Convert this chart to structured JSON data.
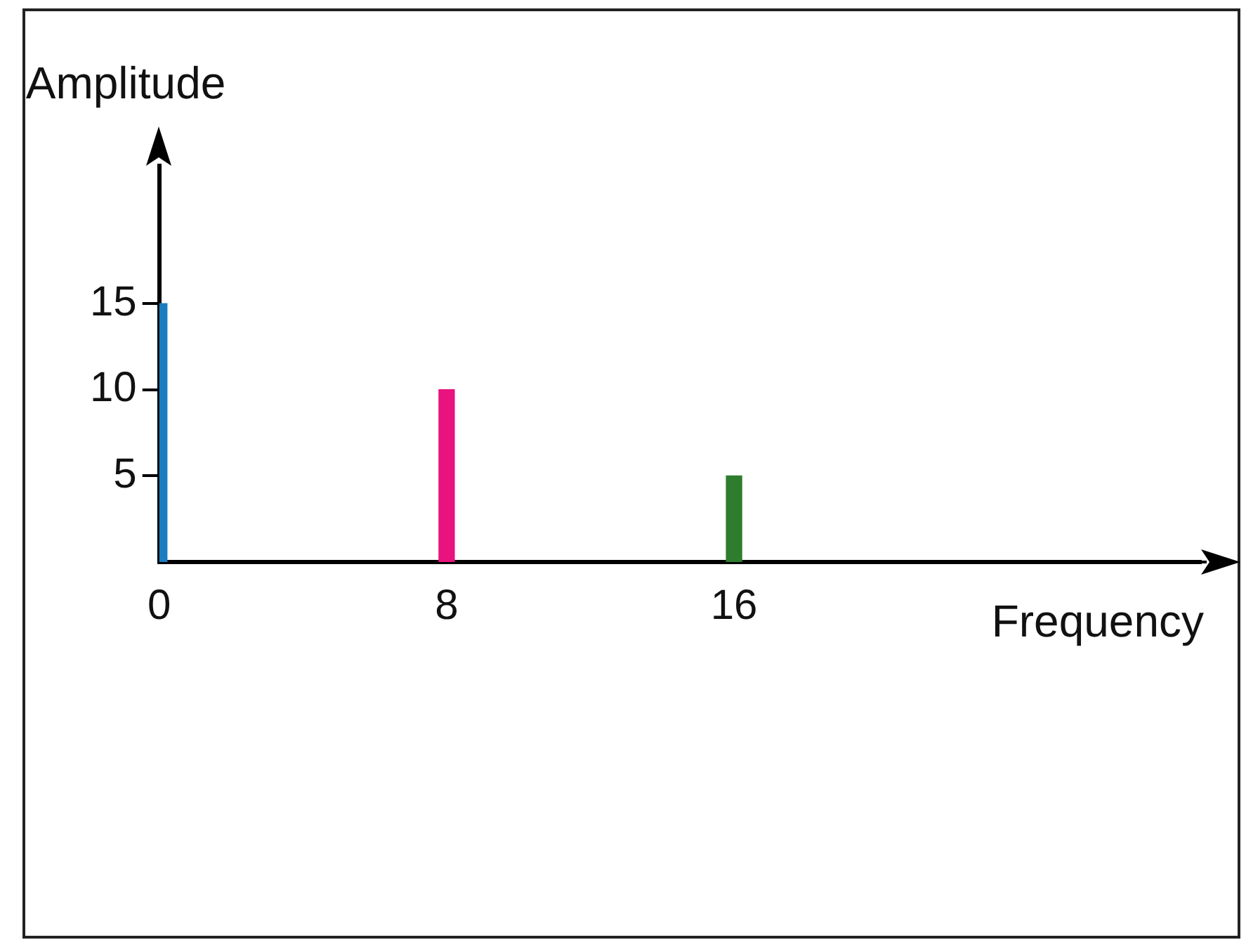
{
  "chart_data": {
    "type": "bar",
    "xlabel": "Frequency",
    "ylabel": "Amplitude",
    "x": [
      0,
      8,
      16
    ],
    "values": [
      15,
      10,
      5
    ],
    "colors": [
      "#1a7cc1",
      "#e8137f",
      "#2e7d2e"
    ],
    "xlim": [
      0,
      29
    ],
    "xticks": [
      0,
      8,
      16
    ],
    "ylim": [
      0,
      23
    ],
    "yticks": [
      5,
      10,
      15
    ],
    "grid": false,
    "legend": false
  }
}
